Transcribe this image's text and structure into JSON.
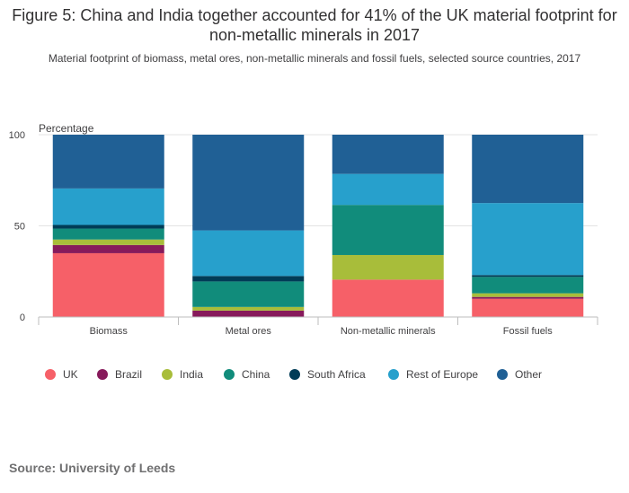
{
  "title": "Figure 5: China and India together accounted for 41% of the UK material footprint for non-metallic minerals in 2017",
  "subtitle": "Material footprint of biomass, metal ores, non-metallic minerals and fossil fuels, selected source countries, 2017",
  "source": "Source: University of Leeds",
  "chart_data": {
    "type": "bar",
    "stacked": true,
    "title": "Figure 5: China and India together accounted for 41% of the UK material footprint for non-metallic minerals in 2017",
    "ylabel": "Percentage",
    "ylim": [
      0,
      100
    ],
    "yticks": [
      0,
      50,
      100
    ],
    "categories": [
      "Biomass",
      "Metal ores",
      "Non-metallic minerals",
      "Fossil fuels"
    ],
    "series": [
      {
        "name": "UK",
        "color": "#f66068",
        "values": [
          35,
          0,
          20.5,
          10
        ]
      },
      {
        "name": "Brazil",
        "color": "#871a5b",
        "values": [
          4.5,
          3.5,
          0,
          1
        ]
      },
      {
        "name": "India",
        "color": "#a8bd3a",
        "values": [
          3,
          2,
          13.5,
          2
        ]
      },
      {
        "name": "China",
        "color": "#118c7b",
        "values": [
          6,
          14,
          27.5,
          9
        ]
      },
      {
        "name": "South Africa",
        "color": "#003c57",
        "values": [
          2,
          3,
          0,
          1
        ]
      },
      {
        "name": "Rest of Europe",
        "color": "#27a0cc",
        "values": [
          20,
          25,
          17,
          39.5
        ]
      },
      {
        "name": "Other",
        "color": "#206095",
        "values": [
          29.5,
          52.5,
          21.5,
          37.5
        ]
      }
    ],
    "legend": "bottom",
    "grid": true
  }
}
